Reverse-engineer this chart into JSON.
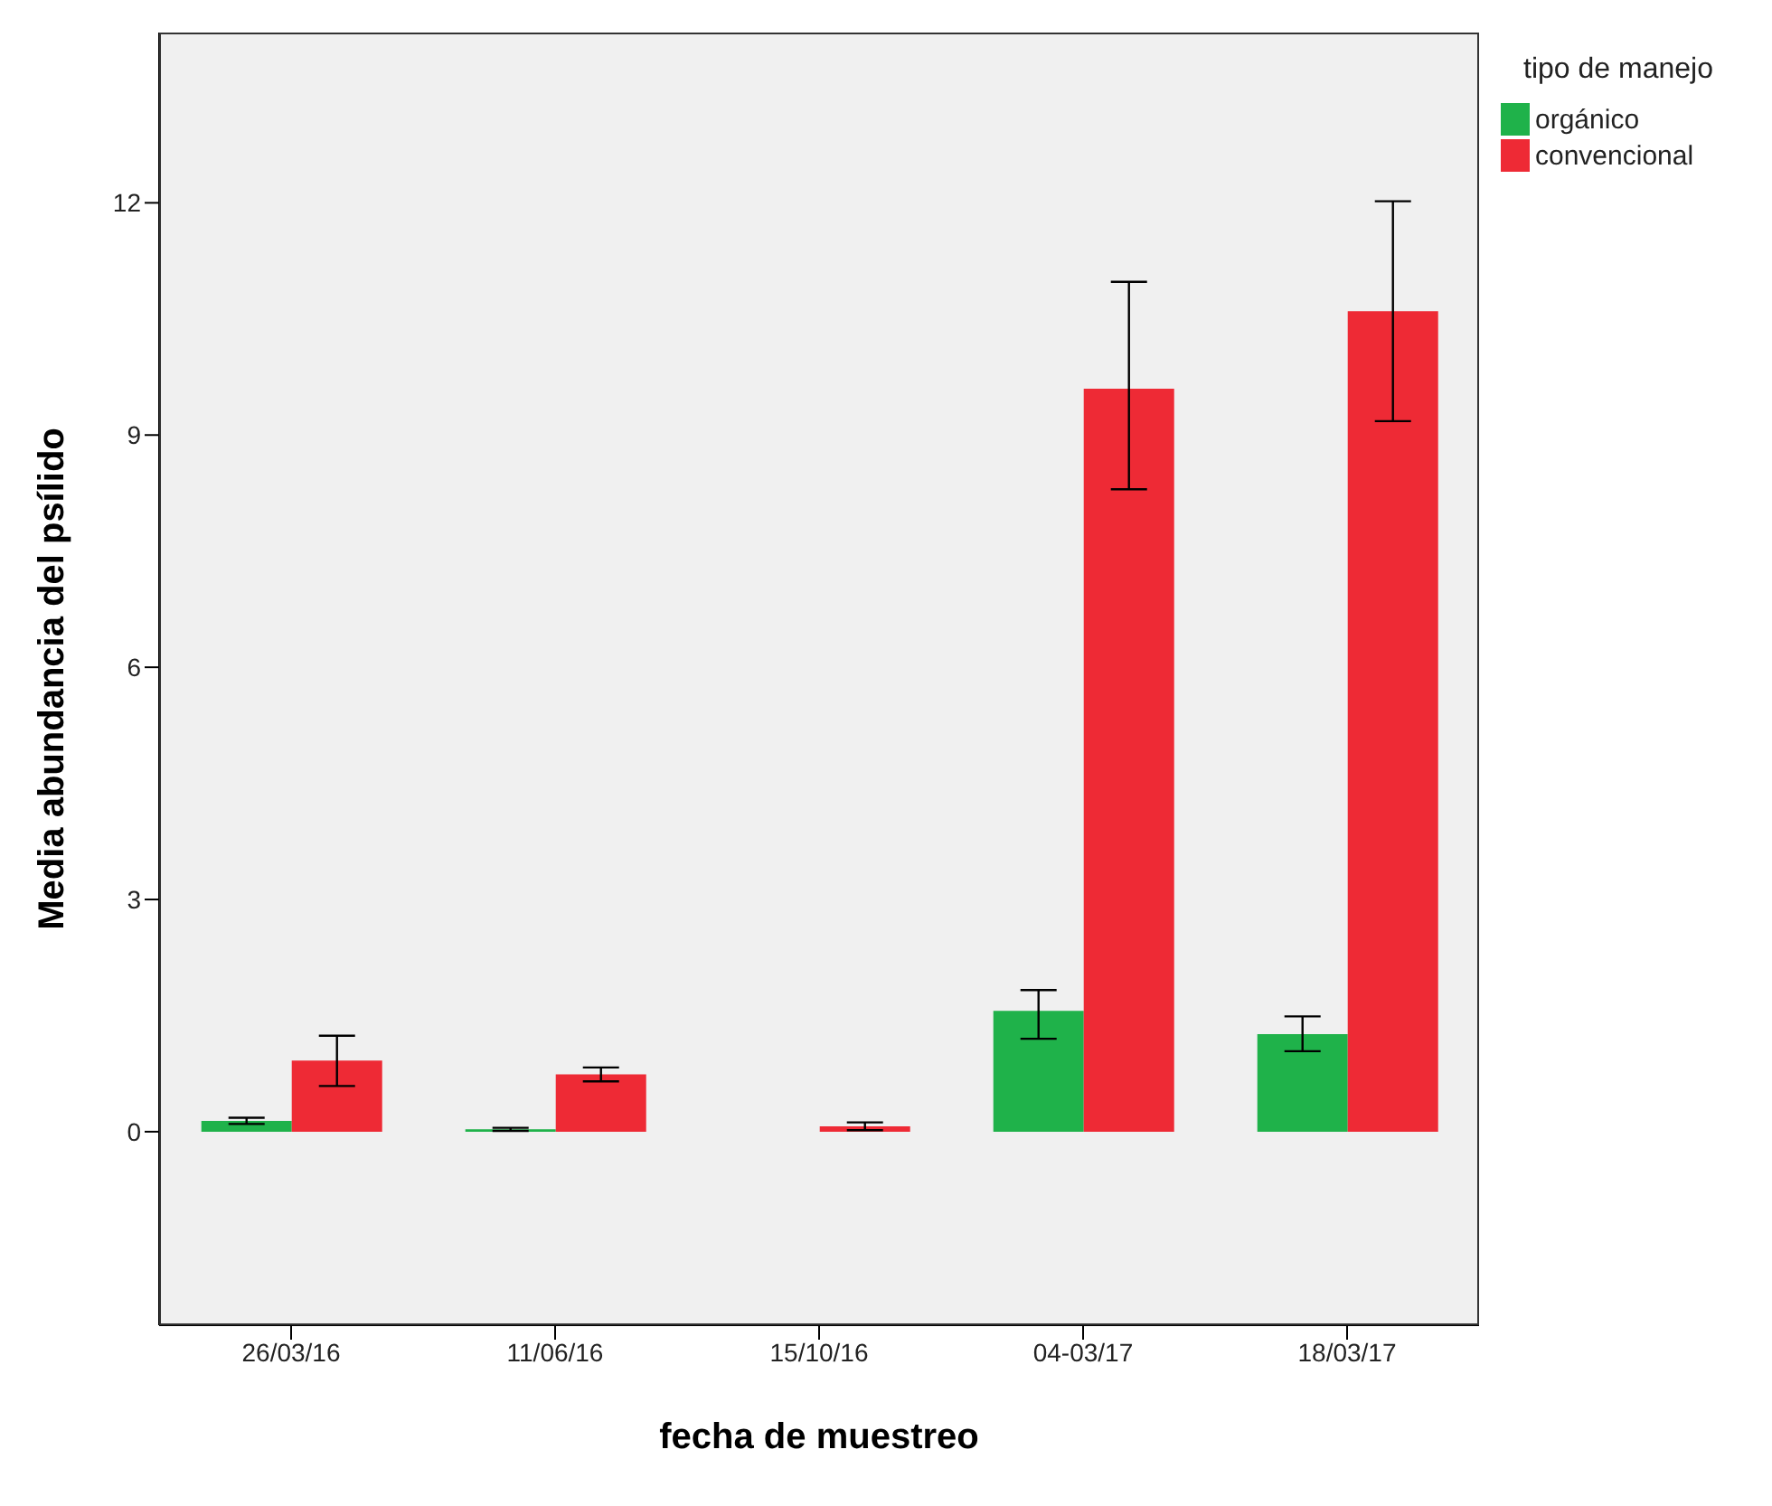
{
  "chart_data": {
    "type": "bar",
    "xlabel": "fecha de muestreo",
    "ylabel": "Media abundancia del psílido",
    "legend_title": "tipo de manejo",
    "categories": [
      "26/03/16",
      "11/06/16",
      "15/10/16",
      "04-03/17",
      "18/03/17"
    ],
    "series": [
      {
        "name": "orgánico",
        "color": "#1fb24a",
        "values": [
          0.14,
          0.03,
          0.0,
          1.56,
          1.26
        ],
        "errors": [
          [
            0.1,
            0.18
          ],
          [
            0.01,
            0.05
          ],
          null,
          [
            1.2,
            1.83
          ],
          [
            1.04,
            1.49
          ]
        ]
      },
      {
        "name": "convencional",
        "color": "#ee2a35",
        "values": [
          0.92,
          0.74,
          0.07,
          9.6,
          10.6
        ],
        "errors": [
          [
            0.59,
            1.24
          ],
          [
            0.65,
            0.83
          ],
          [
            0.02,
            0.12
          ],
          [
            8.3,
            10.98
          ],
          [
            9.18,
            12.02
          ]
        ]
      }
    ],
    "ylim": [
      -2.5,
      14.2
    ],
    "yticks": [
      0,
      3,
      6,
      9,
      12
    ],
    "grid": false,
    "legend": "top right"
  }
}
